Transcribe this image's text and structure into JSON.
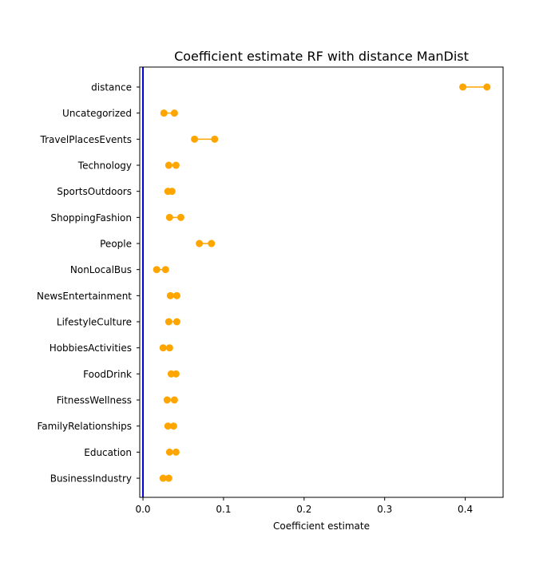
{
  "chart_data": {
    "type": "dumbbell",
    "title": "Coefficient estimate RF  with distance ManDist",
    "xlabel": "Coefficient estimate",
    "ylabel": "",
    "xlim": [
      -0.004,
      0.447
    ],
    "xticks": [
      0.0,
      0.1,
      0.2,
      0.3,
      0.4
    ],
    "xtick_labels": [
      "0.0",
      "0.1",
      "0.2",
      "0.3",
      "0.4"
    ],
    "reference_line": {
      "x": 0.0,
      "color": "#0000cc"
    },
    "grid": false,
    "legend": false,
    "marker_color": "#ffa500",
    "categories": [
      "distance",
      "Uncategorized",
      "TravelPlacesEvents",
      "Technology",
      "SportsOutdoors",
      "ShoppingFashion",
      "People",
      "NonLocalBus",
      "NewsEntertainment",
      "LifestyleCulture",
      "HobbiesActivities",
      "FoodDrink",
      "FitnessWellness",
      "FamilyRelationships",
      "Education",
      "BusinessIndustry"
    ],
    "low": [
      0.397,
      0.026,
      0.064,
      0.032,
      0.031,
      0.033,
      0.07,
      0.017,
      0.034,
      0.032,
      0.025,
      0.035,
      0.03,
      0.031,
      0.033,
      0.025
    ],
    "high": [
      0.427,
      0.039,
      0.089,
      0.041,
      0.036,
      0.047,
      0.085,
      0.028,
      0.042,
      0.042,
      0.033,
      0.041,
      0.039,
      0.038,
      0.041,
      0.032
    ]
  }
}
